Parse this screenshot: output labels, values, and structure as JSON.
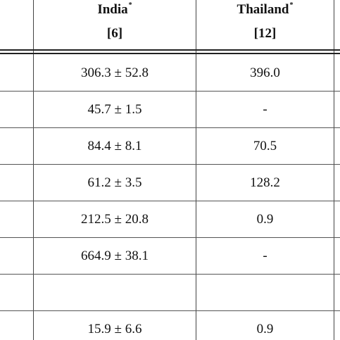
{
  "columns": [
    {
      "name": "India",
      "mark": "*",
      "ref": "[6]"
    },
    {
      "name": "Thailand",
      "mark": "*",
      "ref": "[12]"
    }
  ],
  "rows": [
    {
      "india": "306.3 ± 52.8",
      "thailand": "396.0"
    },
    {
      "india": "45.7 ± 1.5",
      "thailand": "-"
    },
    {
      "india": "84.4 ± 8.1",
      "thailand": "70.5"
    },
    {
      "india": "61.2 ± 3.5",
      "thailand": "128.2"
    },
    {
      "india": "212.5 ± 20.8",
      "thailand": "0.9"
    },
    {
      "india": "664.9 ± 38.1",
      "thailand": "-"
    },
    {
      "india": "",
      "thailand": ""
    },
    {
      "india": "15.9 ± 6.6",
      "thailand": "0.9"
    }
  ]
}
